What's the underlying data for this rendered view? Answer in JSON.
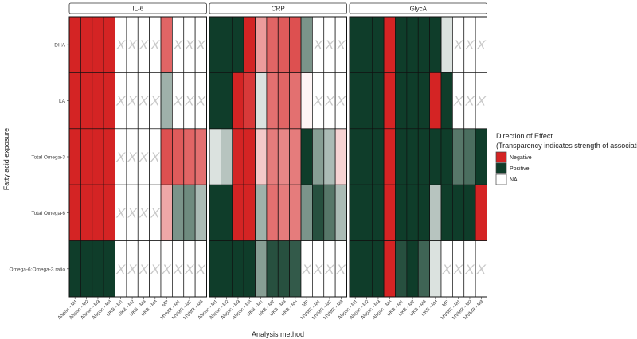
{
  "chart_data": {
    "type": "heatmap",
    "xlabel": "Analysis method",
    "ylabel": "Fatty acid exposure",
    "legend": {
      "title_line1": "Direction of Effect",
      "title_line2": "(Transparency indicates strength of association)",
      "placement": "right",
      "items": [
        {
          "key": "N",
          "label": "Negative",
          "color": "#d42424"
        },
        {
          "key": "P",
          "label": "Positive",
          "color": "#0f3d2a"
        },
        {
          "key": "NA",
          "label": "NA",
          "color": "#ffffff"
        }
      ]
    },
    "na_symbol": "X",
    "columns": [
      "Alspac - M1",
      "Alspac - M2",
      "Alspac - M3",
      "Alspac - M4",
      "UKB - M1",
      "UKB - M2",
      "UKB - M3",
      "UKB - M4",
      "MR",
      "MVMR - M1",
      "MVMR - M2",
      "MVMR - M3"
    ],
    "rows": [
      "DHA",
      "LA",
      "Total Omega-3",
      "Total Omega-6",
      "Omega-6:Omega-3 ratio"
    ],
    "panels": [
      {
        "title": "IL-6",
        "cells": [
          [
            "N1",
            "N1",
            "N1",
            "N1",
            "NA",
            "NA",
            "NA",
            "NA",
            "N0.7",
            "NA",
            "NA",
            "NA"
          ],
          [
            "N1",
            "N1",
            "N1",
            "N1",
            "NA",
            "NA",
            "NA",
            "NA",
            "P0.4",
            "NA",
            "NA",
            "NA"
          ],
          [
            "N1",
            "N1",
            "N1",
            "N1",
            "NA",
            "NA",
            "NA",
            "NA",
            "N0.8",
            "N0.75",
            "N0.7",
            "N0.65"
          ],
          [
            "N1",
            "N1",
            "N1",
            "N1",
            "NA",
            "NA",
            "NA",
            "NA",
            "N0.4",
            "P0.55",
            "P0.6",
            "P0.35"
          ],
          [
            "P1",
            "P1",
            "P1",
            "P1",
            "NA",
            "NA",
            "NA",
            "NA",
            "NA",
            "NA",
            "NA",
            "NA"
          ]
        ]
      },
      {
        "title": "CRP",
        "cells": [
          [
            "P1",
            "P1",
            "P1",
            "N1",
            "N0.45",
            "N0.7",
            "N0.75",
            "N0.8",
            "P0.55",
            "NA",
            "NA",
            "NA"
          ],
          [
            "P1",
            "P1",
            "N1",
            "N0.9",
            "P0.15",
            "N0.65",
            "N0.7",
            "N0.65",
            "N0.05",
            "NA",
            "NA",
            "NA"
          ],
          [
            "P0.15",
            "P0.3",
            "N1",
            "N1",
            "N0.25",
            "N0.6",
            "N0.55",
            "N0.6",
            "P1",
            "P0.5",
            "P0.35",
            "N0.2"
          ],
          [
            "P1",
            "P1",
            "N1",
            "N1",
            "P0.4",
            "N0.65",
            "N0.6",
            "N0.6",
            "P0.55",
            "P0.9",
            "P0.7",
            "P0.35"
          ],
          [
            "P1",
            "P1",
            "P1",
            "P1",
            "P0.5",
            "P0.9",
            "P0.9",
            "P0.85",
            "NA",
            "NA",
            "NA",
            "NA"
          ]
        ]
      },
      {
        "title": "GlycA",
        "cells": [
          [
            "P1",
            "P1",
            "P1",
            "N1",
            "P1",
            "P1",
            "P1",
            "P1",
            "P0.15",
            "NA",
            "NA",
            "NA"
          ],
          [
            "P1",
            "P1",
            "P1",
            "N1",
            "P1",
            "P1",
            "P1",
            "N1",
            "P1",
            "NA",
            "NA",
            "NA"
          ],
          [
            "P1",
            "P1",
            "P1",
            "N1",
            "P1",
            "P1",
            "P1",
            "P1",
            "P1",
            "P0.7",
            "P0.75",
            "P1"
          ],
          [
            "P1",
            "P1",
            "P1",
            "N1",
            "P1",
            "P1",
            "P1",
            "P0.3",
            "P1",
            "P1",
            "P1",
            "N1"
          ],
          [
            "P1",
            "P1",
            "P1",
            "N1",
            "P0.9",
            "P1",
            "P0.8",
            "P0.15",
            "NA",
            "NA",
            "NA",
            "NA"
          ]
        ]
      }
    ]
  }
}
